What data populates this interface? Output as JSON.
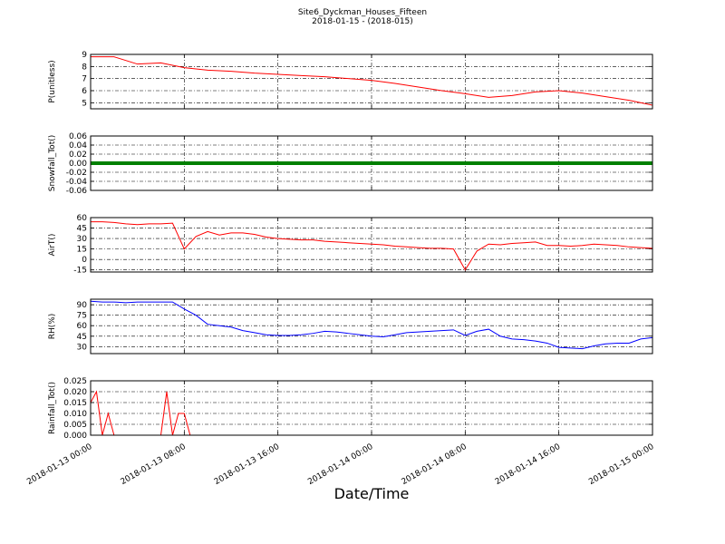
{
  "figure": {
    "title": "Site6_Dyckman_Houses_Fifteen",
    "subtitle": "2018-01-15 - (2018-015)",
    "xlabel": "Date/Time",
    "xlim": [
      "2018-01-13 00:00",
      "2018-01-15 00:00"
    ],
    "xticks": [
      "2018-01-13 00:00",
      "2018-01-13 08:00",
      "2018-01-13 16:00",
      "2018-01-14 00:00",
      "2018-01-14 08:00",
      "2018-01-14 16:00",
      "2018-01-15 00:00"
    ],
    "grid": true
  },
  "chart_data": [
    {
      "type": "line",
      "ylabel": "P(unitless)",
      "color": "#ff0000",
      "ylim": [
        4.5,
        9
      ],
      "yticks": [
        5,
        6,
        7,
        8,
        9
      ],
      "x": [
        "2018-01-13 00:00",
        "2018-01-13 02:00",
        "2018-01-13 04:00",
        "2018-01-13 06:00",
        "2018-01-13 08:00",
        "2018-01-13 10:00",
        "2018-01-13 12:00",
        "2018-01-13 14:00",
        "2018-01-13 16:00",
        "2018-01-13 18:00",
        "2018-01-13 20:00",
        "2018-01-13 22:00",
        "2018-01-14 00:00",
        "2018-01-14 02:00",
        "2018-01-14 04:00",
        "2018-01-14 06:00",
        "2018-01-14 08:00",
        "2018-01-14 10:00",
        "2018-01-14 12:00",
        "2018-01-14 14:00",
        "2018-01-14 16:00",
        "2018-01-14 18:00",
        "2018-01-14 20:00",
        "2018-01-14 22:00",
        "2018-01-15 00:00"
      ],
      "values": [
        8.8,
        8.8,
        8.2,
        8.3,
        7.9,
        7.7,
        7.6,
        7.45,
        7.35,
        7.25,
        7.15,
        7.0,
        6.85,
        6.6,
        6.3,
        6.0,
        5.75,
        5.45,
        5.6,
        5.9,
        6.0,
        5.8,
        5.5,
        5.2,
        4.8
      ]
    },
    {
      "type": "line",
      "ylabel": "Snowfall_Tot()",
      "color": "#008000",
      "thick": true,
      "ylim": [
        -0.06,
        0.06
      ],
      "yticks": [
        -0.06,
        -0.04,
        -0.02,
        {
          "value": 0,
          "label": "0.00"
        },
        0.02,
        0.04,
        0.06
      ],
      "x": [
        "2018-01-13 00:00",
        "2018-01-13 04:00",
        "2018-01-13 08:00",
        "2018-01-13 12:00",
        "2018-01-13 16:00",
        "2018-01-13 20:00",
        "2018-01-14 00:00",
        "2018-01-14 04:00",
        "2018-01-14 08:00",
        "2018-01-14 12:00",
        "2018-01-14 16:00",
        "2018-01-14 20:00",
        "2018-01-15 00:00"
      ],
      "values": [
        0,
        0,
        0,
        0,
        0,
        0,
        0,
        0,
        0,
        0,
        0,
        0,
        0
      ]
    },
    {
      "type": "line",
      "ylabel": "AirT()",
      "color": "#ff0000",
      "ylim": [
        -18,
        60
      ],
      "yticks": [
        -15,
        0,
        15,
        30,
        45,
        60
      ],
      "x": [
        "2018-01-13 00:00",
        "2018-01-13 01:00",
        "2018-01-13 02:00",
        "2018-01-13 03:00",
        "2018-01-13 04:00",
        "2018-01-13 05:00",
        "2018-01-13 06:00",
        "2018-01-13 07:00",
        "2018-01-13 08:00",
        "2018-01-13 09:00",
        "2018-01-13 10:00",
        "2018-01-13 11:00",
        "2018-01-13 12:00",
        "2018-01-13 13:00",
        "2018-01-13 14:00",
        "2018-01-13 15:00",
        "2018-01-13 16:00",
        "2018-01-13 17:00",
        "2018-01-13 18:00",
        "2018-01-13 19:00",
        "2018-01-13 20:00",
        "2018-01-13 21:00",
        "2018-01-13 22:00",
        "2018-01-13 23:00",
        "2018-01-14 00:00",
        "2018-01-14 01:00",
        "2018-01-14 02:00",
        "2018-01-14 03:00",
        "2018-01-14 04:00",
        "2018-01-14 05:00",
        "2018-01-14 06:00",
        "2018-01-14 07:00",
        "2018-01-14 08:00",
        "2018-01-14 09:00",
        "2018-01-14 10:00",
        "2018-01-14 11:00",
        "2018-01-14 12:00",
        "2018-01-14 13:00",
        "2018-01-14 14:00",
        "2018-01-14 15:00",
        "2018-01-14 16:00",
        "2018-01-14 17:00",
        "2018-01-14 18:00",
        "2018-01-14 19:00",
        "2018-01-14 20:00",
        "2018-01-14 21:00",
        "2018-01-14 22:00",
        "2018-01-14 23:00",
        "2018-01-15 00:00"
      ],
      "values": [
        54,
        54,
        53,
        51,
        50,
        51,
        51,
        52,
        15,
        33,
        40,
        35,
        38,
        38,
        36,
        32,
        30,
        29,
        28,
        28,
        26,
        25,
        24,
        23,
        22,
        21,
        19,
        18,
        17,
        16,
        16,
        15,
        -15,
        12,
        22,
        21,
        23,
        24,
        25,
        20,
        20,
        19,
        20,
        22,
        21,
        20,
        18,
        17,
        16
      ]
    },
    {
      "type": "line",
      "ylabel": "RH(%)",
      "color": "#0000ff",
      "ylim": [
        20,
        98
      ],
      "yticks": [
        30,
        45,
        60,
        75,
        90
      ],
      "x": [
        "2018-01-13 00:00",
        "2018-01-13 01:00",
        "2018-01-13 02:00",
        "2018-01-13 03:00",
        "2018-01-13 04:00",
        "2018-01-13 05:00",
        "2018-01-13 06:00",
        "2018-01-13 07:00",
        "2018-01-13 08:00",
        "2018-01-13 09:00",
        "2018-01-13 10:00",
        "2018-01-13 11:00",
        "2018-01-13 12:00",
        "2018-01-13 13:00",
        "2018-01-13 14:00",
        "2018-01-13 15:00",
        "2018-01-13 16:00",
        "2018-01-13 17:00",
        "2018-01-13 18:00",
        "2018-01-13 19:00",
        "2018-01-13 20:00",
        "2018-01-13 21:00",
        "2018-01-13 22:00",
        "2018-01-13 23:00",
        "2018-01-14 00:00",
        "2018-01-14 01:00",
        "2018-01-14 02:00",
        "2018-01-14 03:00",
        "2018-01-14 04:00",
        "2018-01-14 05:00",
        "2018-01-14 06:00",
        "2018-01-14 07:00",
        "2018-01-14 08:00",
        "2018-01-14 09:00",
        "2018-01-14 10:00",
        "2018-01-14 11:00",
        "2018-01-14 12:00",
        "2018-01-14 13:00",
        "2018-01-14 14:00",
        "2018-01-14 15:00",
        "2018-01-14 16:00",
        "2018-01-14 17:00",
        "2018-01-14 18:00",
        "2018-01-14 19:00",
        "2018-01-14 20:00",
        "2018-01-14 21:00",
        "2018-01-14 22:00",
        "2018-01-14 23:00",
        "2018-01-15 00:00"
      ],
      "values": [
        95,
        94,
        94,
        93,
        94,
        94,
        94,
        94,
        84,
        75,
        62,
        60,
        58,
        53,
        50,
        47,
        46,
        46,
        47,
        49,
        52,
        51,
        49,
        47,
        45,
        44,
        47,
        50,
        51,
        52,
        53,
        54,
        46,
        52,
        55,
        45,
        41,
        40,
        38,
        35,
        29,
        28,
        27,
        31,
        34,
        35,
        35,
        41,
        43
      ]
    },
    {
      "type": "line",
      "ylabel": "Rainfall_Tot()",
      "color": "#ff0000",
      "ylim": [
        0,
        0.025
      ],
      "yticks": [
        {
          "value": 0,
          "label": "0.000"
        },
        0.005,
        {
          "value": 0.01,
          "label": "0.010"
        },
        0.015,
        {
          "value": 0.02,
          "label": "0.020"
        },
        0.025
      ],
      "x": [
        "2018-01-13 00:00",
        "2018-01-13 00:30",
        "2018-01-13 01:00",
        "2018-01-13 01:30",
        "2018-01-13 02:00",
        "2018-01-13 06:00",
        "2018-01-13 06:30",
        "2018-01-13 07:00",
        "2018-01-13 07:30",
        "2018-01-13 08:00",
        "2018-01-13 08:30",
        "2018-01-15 00:00"
      ],
      "values": [
        0.015,
        0.02,
        0,
        0.01,
        0,
        0,
        0.02,
        0,
        0.01,
        0.01,
        0,
        0
      ]
    }
  ]
}
